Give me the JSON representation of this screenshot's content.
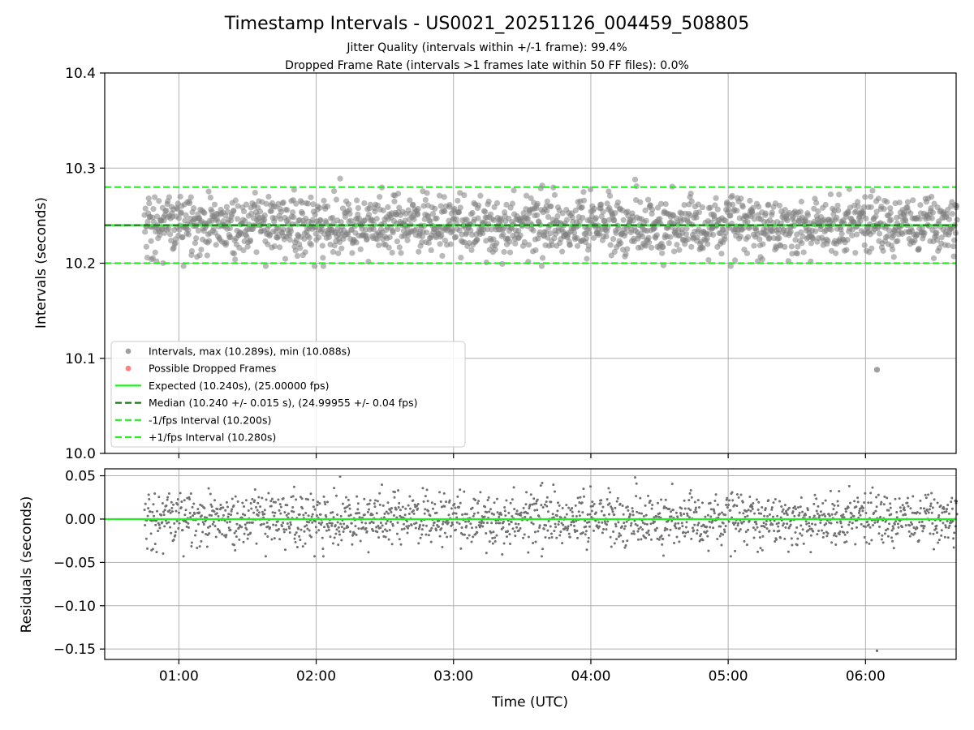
{
  "chart_data": {
    "type": "scatter",
    "title": "Timestamp Intervals - US0021_20251126_004459_508805",
    "subtitle_lines": [
      "Jitter Quality (intervals within +/-1 frame): 99.4%",
      "Dropped Frame Rate (intervals >1 frames late within 50 FF files): 0.0%"
    ],
    "xlabel": "Time (UTC)",
    "x_ticks": [
      "01:00",
      "02:00",
      "03:00",
      "04:00",
      "05:00",
      "06:00"
    ],
    "x_tick_hours": [
      1,
      2,
      3,
      4,
      5,
      6
    ],
    "xlim_hours": [
      0.46,
      6.66
    ],
    "grid": true,
    "top_panel": {
      "ylabel": "Intervals (seconds)",
      "ylim": [
        10.0,
        10.4
      ],
      "y_ticks": [
        "10.0",
        "10.1",
        "10.2",
        "10.3",
        "10.4"
      ],
      "y_tick_values": [
        10.0,
        10.1,
        10.2,
        10.3,
        10.4
      ],
      "legend_position": "lower-left",
      "series": [
        {
          "name": "Intervals, max (10.289s), min (10.088s)",
          "kind": "scatter",
          "color": "#808080",
          "y_min": 10.197,
          "y_max": 10.289,
          "outlier_y": 10.088,
          "outlier_time": "06:05"
        },
        {
          "name": "Possible Dropped Frames",
          "kind": "scatter",
          "color": "#ff5555",
          "count": 0
        },
        {
          "name": "Expected (10.240s), (25.00000 fps)",
          "kind": "hline",
          "y": 10.24,
          "style": "solid",
          "color": "#22ee22"
        },
        {
          "name": "Median (10.240 +/- 0.015 s), (24.99955 +/- 0.04 fps)",
          "kind": "hline",
          "y": 10.24,
          "style": "dashed",
          "color": "#1a7a1a"
        },
        {
          "name": "-1/fps Interval (10.200s)",
          "kind": "hline",
          "y": 10.2,
          "style": "dashed",
          "color": "#22ee22"
        },
        {
          "name": "+1/fps Interval (10.280s)",
          "kind": "hline",
          "y": 10.28,
          "style": "dashed",
          "color": "#22ee22"
        }
      ]
    },
    "bottom_panel": {
      "ylabel": "Residuals (seconds)",
      "ylim": [
        -0.162,
        0.058
      ],
      "y_ticks": [
        "0.05",
        "0.00",
        "−0.05",
        "−0.10",
        "−0.15"
      ],
      "y_tick_values": [
        0.05,
        0.0,
        -0.05,
        -0.1,
        -0.15
      ],
      "zero_line_color": "#22ee22",
      "residual_min": -0.152,
      "residual_max": 0.048
    },
    "data_time_range": [
      "00:45",
      "06:40"
    ],
    "sample_interval_s": 10.24,
    "colors": {
      "points": "#808080",
      "expected": "#22ee22",
      "median": "#1a7a1a",
      "dropped": "#ff5555"
    }
  }
}
